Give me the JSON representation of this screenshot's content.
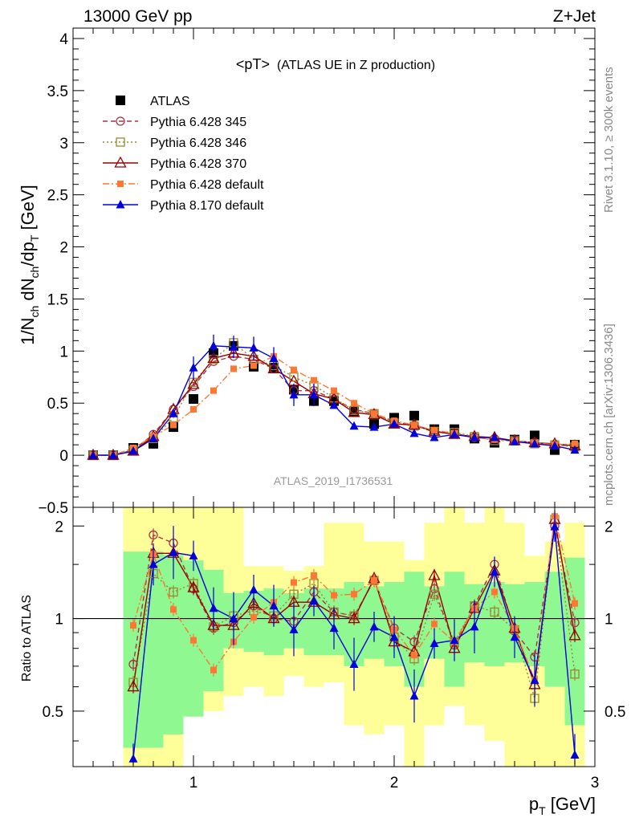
{
  "header": {
    "left": "13000 GeV pp",
    "right": "Z+Jet"
  },
  "side_labels": {
    "rivet": "Rivet 3.1.10, ≥ 300k events",
    "mcplots": "mcplots.cern.ch [arXiv:1306.3436]"
  },
  "chart_data": [
    {
      "type": "scatter",
      "title": "<pT> (ATLAS UE in Z production)",
      "title_main": "<pT>",
      "title_sub": "(ATLAS UE in Z production)",
      "watermark": "ATLAS_2019_I1736531",
      "ylabel": "1/Nch dNch/dpT [GeV]",
      "xlim": [
        0.4,
        3.0
      ],
      "ylim": [
        -0.5,
        4.1
      ],
      "y_ticks": [
        "−0.5",
        "0",
        "0.5",
        "1",
        "1.5",
        "2",
        "2.5",
        "3",
        "3.5",
        "4"
      ],
      "legend_position": "top-left",
      "x": [
        0.5,
        0.6,
        0.7,
        0.8,
        0.9,
        1.0,
        1.1,
        1.2,
        1.3,
        1.4,
        1.5,
        1.6,
        1.7,
        1.8,
        1.9,
        2.0,
        2.1,
        2.2,
        2.3,
        2.4,
        2.5,
        2.6,
        2.7,
        2.8,
        2.9
      ],
      "series": [
        {
          "name": "ATLAS",
          "color": "#000000",
          "marker": "square-filled",
          "line": "none",
          "values": [
            0.0,
            0.0,
            0.07,
            0.11,
            0.27,
            0.54,
            0.98,
            1.05,
            0.85,
            0.84,
            0.63,
            0.52,
            0.52,
            0.42,
            0.3,
            0.36,
            0.38,
            0.25,
            0.25,
            0.16,
            0.12,
            0.15,
            0.19,
            0.05,
            0.1
          ]
        },
        {
          "name": "Pythia 6.428 345",
          "color": "#aa3344",
          "marker": "circle-open",
          "line": "dashed",
          "values": [
            0.0,
            0.0,
            0.05,
            0.2,
            0.44,
            0.66,
            0.9,
            0.95,
            0.92,
            0.83,
            0.62,
            0.62,
            0.54,
            0.44,
            0.4,
            0.32,
            0.29,
            0.22,
            0.21,
            0.17,
            0.16,
            0.14,
            0.12,
            0.1,
            0.09
          ]
        },
        {
          "name": "Pythia 6.428 346",
          "color": "#998833",
          "marker": "square-open",
          "line": "dotted",
          "values": [
            0.0,
            0.0,
            0.05,
            0.16,
            0.36,
            0.7,
            0.92,
            1.08,
            0.92,
            0.86,
            0.75,
            0.67,
            0.55,
            0.43,
            0.4,
            0.31,
            0.28,
            0.23,
            0.22,
            0.18,
            0.14,
            0.14,
            0.11,
            0.1,
            0.08
          ]
        },
        {
          "name": "Pythia 6.428 370",
          "color": "#990000",
          "marker": "triangle-open",
          "line": "solid",
          "values": [
            0.0,
            0.0,
            0.04,
            0.18,
            0.44,
            0.68,
            0.93,
            0.98,
            0.95,
            0.83,
            0.71,
            0.59,
            0.54,
            0.41,
            0.39,
            0.3,
            0.29,
            0.23,
            0.2,
            0.18,
            0.17,
            0.14,
            0.12,
            0.11,
            0.09
          ]
        },
        {
          "name": "Pythia 6.428 default",
          "color": "#ff7733",
          "marker": "square-filled-small",
          "line": "dashdot",
          "values": [
            0.0,
            0.0,
            0.07,
            0.18,
            0.29,
            0.44,
            0.62,
            0.83,
            0.86,
            0.95,
            0.82,
            0.72,
            0.62,
            0.5,
            0.4,
            0.33,
            0.29,
            0.24,
            0.21,
            0.17,
            0.15,
            0.14,
            0.12,
            0.1,
            0.11
          ]
        },
        {
          "name": "Pythia 8.170 default",
          "color": "#0000dd",
          "marker": "triangle-filled",
          "line": "solid",
          "values": [
            0.0,
            0.0,
            0.04,
            0.16,
            0.4,
            0.84,
            1.05,
            1.04,
            1.03,
            0.93,
            0.58,
            0.58,
            0.48,
            0.28,
            0.27,
            0.3,
            0.21,
            0.17,
            0.2,
            0.17,
            0.17,
            0.13,
            0.11,
            0.09,
            0.05
          ]
        }
      ]
    },
    {
      "type": "scatter",
      "ylabel": "Ratio to ATLAS",
      "xlabel": "pT [GeV]",
      "xlim": [
        0.4,
        3.0
      ],
      "ylim": [
        0.33,
        2.3
      ],
      "log_y": true,
      "y_ticks": [
        "0.5",
        "1",
        "2"
      ],
      "x_ticks": [
        "1",
        "2",
        "3"
      ],
      "reference_line": 1,
      "band_colors": {
        "inner": "#90f890",
        "outer": "#ffff99"
      },
      "x": [
        0.7,
        0.8,
        0.9,
        1.0,
        1.1,
        1.2,
        1.3,
        1.4,
        1.5,
        1.6,
        1.7,
        1.8,
        1.9,
        2.0,
        2.1,
        2.2,
        2.3,
        2.4,
        2.5,
        2.6,
        2.7,
        2.8,
        2.9
      ],
      "series": [
        {
          "name": "Pythia 6.428 345",
          "color": "#aa3344",
          "values": [
            0.71,
            1.87,
            1.76,
            1.25,
            0.93,
            0.97,
            1.1,
            1.0,
            0.98,
            1.22,
            1.05,
            1.02,
            1.33,
            0.93,
            0.84,
            1.25,
            0.82,
            1.1,
            1.5,
            0.91,
            0.75,
            2.0,
            0.97
          ]
        },
        {
          "name": "Pythia 6.428 346",
          "color": "#998833",
          "values": [
            0.62,
            1.4,
            1.22,
            1.3,
            0.94,
            1.02,
            1.06,
            1.02,
            1.2,
            1.3,
            1.05,
            1.02,
            1.33,
            0.87,
            0.74,
            1.2,
            0.84,
            1.1,
            1.05,
            0.92,
            0.55,
            2.1,
            0.66
          ]
        },
        {
          "name": "Pythia 6.428 370",
          "color": "#990000",
          "values": [
            0.6,
            1.63,
            1.63,
            1.26,
            0.95,
            0.95,
            1.12,
            1.0,
            1.13,
            1.13,
            1.03,
            1.0,
            1.35,
            0.84,
            0.78,
            1.38,
            0.8,
            1.08,
            1.43,
            0.93,
            0.61,
            2.1,
            0.88
          ]
        },
        {
          "name": "Pythia 6.428 default",
          "color": "#ff7733",
          "values": [
            0.95,
            1.62,
            1.07,
            0.85,
            0.68,
            0.84,
            1.01,
            1.13,
            1.31,
            1.38,
            1.19,
            1.2,
            1.33,
            0.92,
            0.76,
            0.96,
            0.84,
            1.08,
            1.22,
            0.93,
            0.63,
            2.15,
            1.12
          ]
        },
        {
          "name": "Pythia 8.170 default",
          "color": "#0000dd",
          "values": [
            0.35,
            1.5,
            1.64,
            1.6,
            1.08,
            1.0,
            1.24,
            1.1,
            0.92,
            1.14,
            0.93,
            0.71,
            0.94,
            0.87,
            0.56,
            0.83,
            0.85,
            0.94,
            1.42,
            0.87,
            0.63,
            1.99,
            0.36
          ]
        }
      ]
    }
  ]
}
